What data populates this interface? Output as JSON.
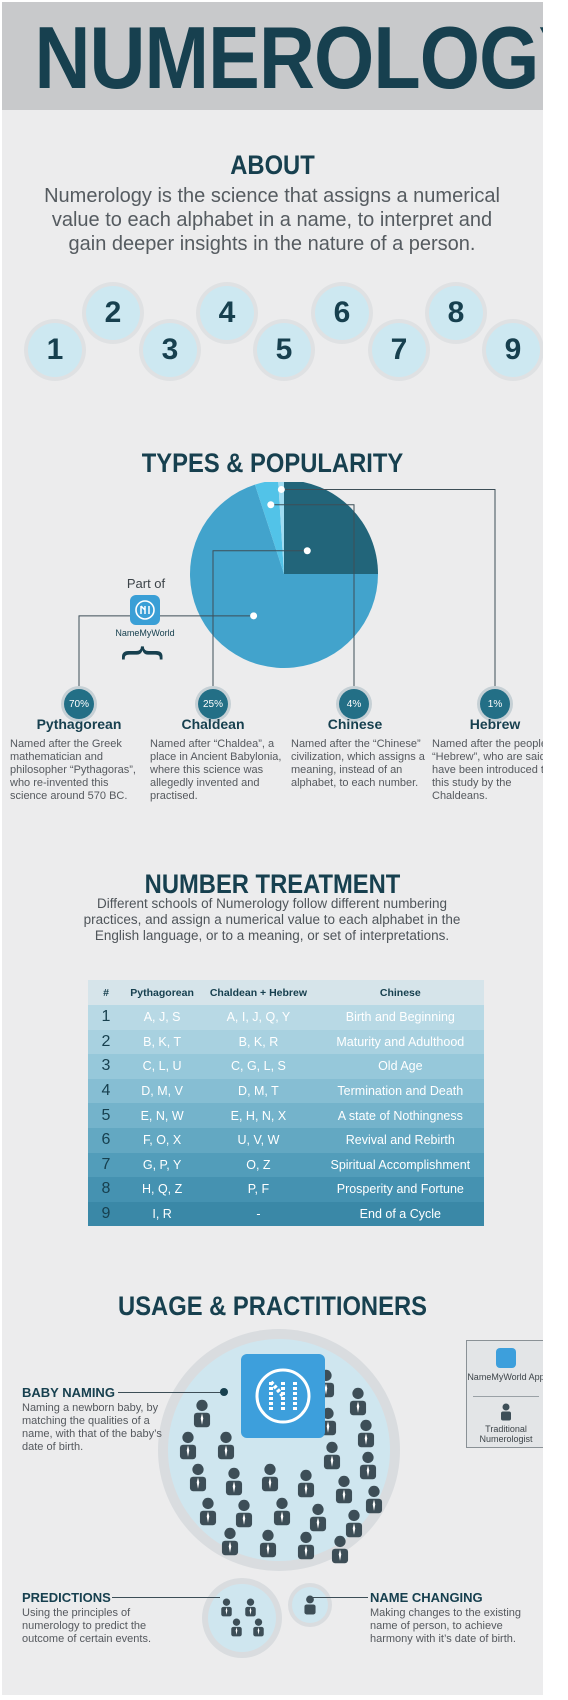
{
  "title": "NUMEROLOGY",
  "about": {
    "heading": "ABOUT",
    "text": "Numerology is the science that assigns a numerical value to each alphabet in a name, to interpret and gain deeper insights in the nature of a person.",
    "numbers": [
      "1",
      "2",
      "3",
      "4",
      "5",
      "6",
      "7",
      "8",
      "9"
    ]
  },
  "types": {
    "heading": "TYPES & POPULARITY",
    "part_of": "Part of",
    "brand": "NameMyWorld",
    "items": [
      {
        "percent": "70%",
        "name": "Pythagorean",
        "desc": "Named after the Greek mathematician and philosopher “Pythagoras”, who re-invented this science around 570 BC."
      },
      {
        "percent": "25%",
        "name": "Chaldean",
        "desc": "Named after “Chaldea”, a place in Ancient Babylonia, where this science was allegedly invented and practised."
      },
      {
        "percent": "4%",
        "name": "Chinese",
        "desc": "Named after the “Chinese” civilization, which assigns a meaning, instead of an alphabet, to each number."
      },
      {
        "percent": "1%",
        "name": "Hebrew",
        "desc": "Named after the people of “Hebrew”, who are said to have been introduced to this study by the Chaldeans."
      }
    ],
    "colors": [
      "#42a3cc",
      "#22657a",
      "#52c3e8",
      "#9fdcf2"
    ]
  },
  "chart_data": {
    "type": "pie",
    "categories": [
      "Pythagorean",
      "Chaldean",
      "Chinese",
      "Hebrew"
    ],
    "values": [
      70,
      25,
      4,
      1
    ],
    "title": "",
    "legend": "below"
  },
  "treatment": {
    "heading": "NUMBER TREATMENT",
    "text": "Different schools of Numerology follow different numbering practices, and assign a numerical value to each alphabet in the English language, or to a meaning, or set of interpretations.",
    "columns": [
      "#",
      "Pythagorean",
      "Chaldean + Hebrew",
      "Chinese"
    ],
    "rows": [
      [
        "1",
        "A, J, S",
        "A, I, J, Q, Y",
        "Birth and Beginning"
      ],
      [
        "2",
        "B, K, T",
        "B, K, R",
        "Maturity and Adulthood"
      ],
      [
        "3",
        "C, L, U",
        "C, G, L, S",
        "Old Age"
      ],
      [
        "4",
        "D, M, V",
        "D, M, T",
        "Termination and Death"
      ],
      [
        "5",
        "E, N, W",
        "E, H, N, X",
        "A state of Nothingness"
      ],
      [
        "6",
        "F, O, X",
        "U, V, W",
        "Revival and Rebirth"
      ],
      [
        "7",
        "G, P, Y",
        "O, Z",
        "Spiritual Accomplishment"
      ],
      [
        "8",
        "H, Q, Z",
        "P, F",
        "Prosperity and Fortune"
      ],
      [
        "9",
        "I, R",
        "-",
        "End of a Cycle"
      ]
    ],
    "row_colors": [
      "#b8d9e5",
      "#a8d1e0",
      "#96c8da",
      "#86bed3",
      "#74b3cb",
      "#63a8c2",
      "#529dba",
      "#4592b1",
      "#3a88a7"
    ]
  },
  "usage": {
    "heading": "USAGE & PRACTITIONERS",
    "baby_naming": {
      "label": "BABY NAMING",
      "desc": "Naming a newborn baby, by matching the qualities of a name, with that of the baby’s date of birth."
    },
    "predictions": {
      "label": "PREDICTIONS",
      "desc": "Using the principles of numerology to predict the outcome of certain events."
    },
    "name_changing": {
      "label": "NAME CHANGING",
      "desc": "Making changes to the existing name of person, to achieve harmony with it’s date of birth."
    },
    "legend_app": "NameMyWorld App",
    "legend_trad": "Traditional Numerologist"
  }
}
